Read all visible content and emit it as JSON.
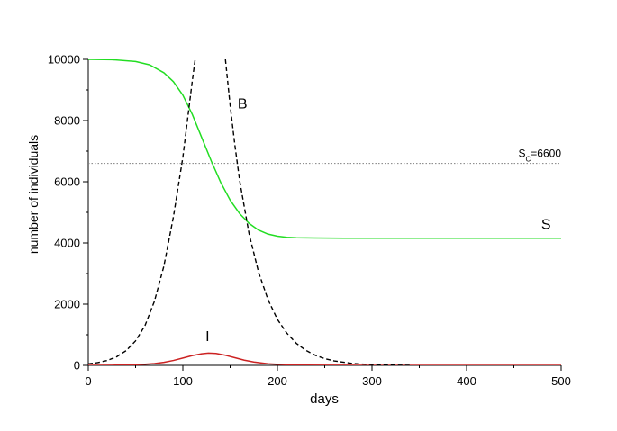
{
  "chart_data": {
    "type": "line",
    "xlabel": "days",
    "ylabel": "number of individuals",
    "xlim": [
      0,
      500
    ],
    "ylim": [
      0,
      10000
    ],
    "x_ticks": [
      0,
      100,
      200,
      300,
      400,
      500
    ],
    "y_ticks": [
      0,
      2000,
      4000,
      6000,
      8000,
      10000
    ],
    "x_tick_labels": [
      "0",
      "100",
      "200",
      "300",
      "400",
      "500"
    ],
    "y_tick_labels": [
      "0",
      "2000",
      "4000",
      "6000",
      "8000",
      "10000"
    ],
    "grid": false,
    "reference_line": {
      "y": 6600,
      "label_main": "S",
      "label_sub": "C",
      "label_rest": "=6600",
      "style": "dotted",
      "color": "#808080"
    },
    "series": [
      {
        "name": "S",
        "color": "#22dd22",
        "style": "solid",
        "x": [
          0,
          25,
          50,
          65,
          80,
          90,
          100,
          110,
          120,
          130,
          140,
          150,
          160,
          170,
          180,
          190,
          200,
          210,
          220,
          240,
          270,
          300,
          400,
          500
        ],
        "y": [
          10000,
          9990,
          9930,
          9820,
          9560,
          9270,
          8830,
          8200,
          7440,
          6680,
          5980,
          5400,
          4960,
          4640,
          4420,
          4290,
          4220,
          4185,
          4170,
          4160,
          4155,
          4155,
          4155,
          4155
        ]
      },
      {
        "name": "I",
        "color": "#cc2222",
        "style": "solid",
        "x": [
          0,
          25,
          50,
          60,
          70,
          80,
          90,
          100,
          110,
          120,
          127,
          135,
          145,
          155,
          165,
          175,
          190,
          210,
          230,
          260,
          300,
          400,
          500
        ],
        "y": [
          0,
          5,
          20,
          35,
          60,
          100,
          160,
          240,
          320,
          380,
          400,
          390,
          330,
          250,
          170,
          110,
          50,
          20,
          8,
          3,
          0,
          0,
          0
        ]
      },
      {
        "name": "B",
        "color": "#000000",
        "style": "dashed",
        "segments": [
          {
            "x": [
              0,
              10,
              20,
              30,
              40,
              50,
              60,
              70,
              80,
              90,
              100,
              106,
              110,
              113
            ],
            "y": [
              50,
              90,
              160,
              280,
              480,
              800,
              1300,
              2100,
              3250,
              4850,
              6800,
              8300,
              9300,
              10000
            ]
          },
          {
            "x": [
              145,
              150,
              155,
              160,
              170,
              180,
              190,
              200,
              210,
              220,
              230,
              240,
              250,
              260,
              280,
              300,
              320,
              340
            ],
            "y": [
              10000,
              8500,
              7200,
              6050,
              4300,
              3050,
              2150,
              1500,
              1050,
              720,
              490,
              330,
              220,
              145,
              60,
              25,
              10,
              0
            ]
          }
        ]
      }
    ],
    "series_labels": [
      {
        "text": "B",
        "x": 163,
        "y": 8400
      },
      {
        "text": "S",
        "x": 484,
        "y": 4450
      },
      {
        "text": "I",
        "x": 126,
        "y": 800
      }
    ]
  }
}
